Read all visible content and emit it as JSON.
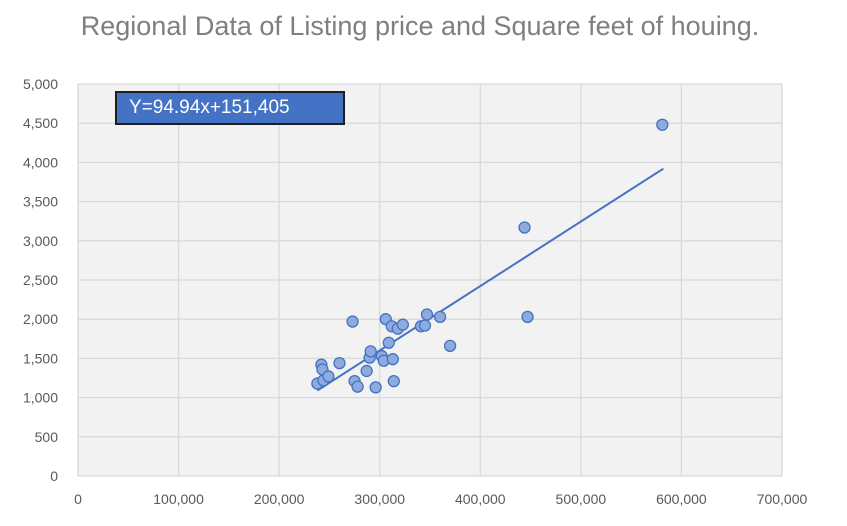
{
  "chart_data": {
    "type": "scatter",
    "title": "Regional Data of Listing price and Square feet of houing.",
    "xlabel": "",
    "ylabel": "",
    "xlim": [
      0,
      700000
    ],
    "ylim": [
      0,
      5000
    ],
    "x_ticks": [
      "0",
      "100,000",
      "200,000",
      "300,000",
      "400,000",
      "500,000",
      "600,000",
      "700,000"
    ],
    "y_ticks": [
      "0",
      "500",
      "1,000",
      "1,500",
      "2,000",
      "2,500",
      "3,000",
      "3,500",
      "4,000",
      "4,500",
      "5,000"
    ],
    "grid": true,
    "annotation": "Y=94.94x+151,405",
    "trendline": {
      "type": "linear",
      "x_start": 238000,
      "x_end": 582000
    },
    "points": [
      {
        "x": 238000,
        "y": 1180
      },
      {
        "x": 242000,
        "y": 1420
      },
      {
        "x": 243000,
        "y": 1360
      },
      {
        "x": 244000,
        "y": 1220
      },
      {
        "x": 249000,
        "y": 1270
      },
      {
        "x": 260000,
        "y": 1440
      },
      {
        "x": 273000,
        "y": 1970
      },
      {
        "x": 275000,
        "y": 1210
      },
      {
        "x": 278000,
        "y": 1140
      },
      {
        "x": 287000,
        "y": 1340
      },
      {
        "x": 290000,
        "y": 1510
      },
      {
        "x": 291000,
        "y": 1590
      },
      {
        "x": 296000,
        "y": 1130
      },
      {
        "x": 302000,
        "y": 1530
      },
      {
        "x": 304000,
        "y": 1470
      },
      {
        "x": 306000,
        "y": 2000
      },
      {
        "x": 309000,
        "y": 1700
      },
      {
        "x": 312000,
        "y": 1910
      },
      {
        "x": 313000,
        "y": 1490
      },
      {
        "x": 314000,
        "y": 1210
      },
      {
        "x": 318000,
        "y": 1880
      },
      {
        "x": 323000,
        "y": 1930
      },
      {
        "x": 341000,
        "y": 1910
      },
      {
        "x": 345000,
        "y": 1920
      },
      {
        "x": 347000,
        "y": 2060
      },
      {
        "x": 360000,
        "y": 2030
      },
      {
        "x": 370000,
        "y": 1660
      },
      {
        "x": 444000,
        "y": 3170
      },
      {
        "x": 447000,
        "y": 2030
      },
      {
        "x": 581000,
        "y": 4480
      }
    ],
    "colors": {
      "marker_fill": "#8faadc",
      "marker_stroke": "#4472c4",
      "trendline": "#4472c4",
      "grid": "#d9d9d9",
      "plot_bg": "#f2f2f2",
      "annotation_bg": "#4472c4",
      "annotation_text": "#ffffff",
      "title_color": "#7f7f7f"
    }
  }
}
